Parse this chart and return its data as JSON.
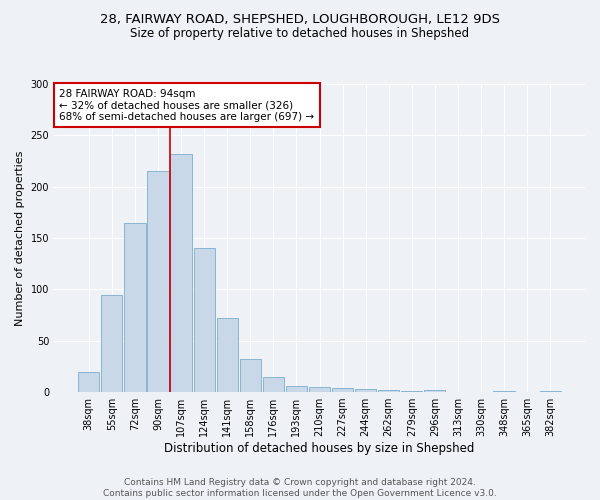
{
  "title_line1": "28, FAIRWAY ROAD, SHEPSHED, LOUGHBOROUGH, LE12 9DS",
  "title_line2": "Size of property relative to detached houses in Shepshed",
  "xlabel": "Distribution of detached houses by size in Shepshed",
  "ylabel": "Number of detached properties",
  "footnote1": "Contains HM Land Registry data © Crown copyright and database right 2024.",
  "footnote2": "Contains public sector information licensed under the Open Government Licence v3.0.",
  "annotation_line1": "28 FAIRWAY ROAD: 94sqm",
  "annotation_line2": "← 32% of detached houses are smaller (326)",
  "annotation_line3": "68% of semi-detached houses are larger (697) →",
  "bar_labels": [
    "38sqm",
    "55sqm",
    "72sqm",
    "90sqm",
    "107sqm",
    "124sqm",
    "141sqm",
    "158sqm",
    "176sqm",
    "193sqm",
    "210sqm",
    "227sqm",
    "244sqm",
    "262sqm",
    "279sqm",
    "296sqm",
    "313sqm",
    "330sqm",
    "348sqm",
    "365sqm",
    "382sqm"
  ],
  "bar_values": [
    20,
    95,
    165,
    215,
    232,
    140,
    72,
    32,
    15,
    6,
    5,
    4,
    3,
    2,
    1,
    2,
    0,
    0,
    1,
    0,
    1
  ],
  "bar_color": "#c8d8e8",
  "bar_edge_color": "#7caccc",
  "vline_x": 3.5,
  "vline_color": "#cc0000",
  "ylim": [
    0,
    300
  ],
  "yticks": [
    0,
    50,
    100,
    150,
    200,
    250,
    300
  ],
  "background_color": "#eef2f7",
  "plot_bg_color": "#eef2f7",
  "grid_color": "#ffffff",
  "annotation_box_color": "#ffffff",
  "annotation_box_edge": "#cc0000",
  "title_fontsize": 9.5,
  "subtitle_fontsize": 8.5,
  "tick_fontsize": 7,
  "ylabel_fontsize": 8,
  "xlabel_fontsize": 8.5,
  "footnote_fontsize": 6.5,
  "annotation_fontsize": 7.5
}
